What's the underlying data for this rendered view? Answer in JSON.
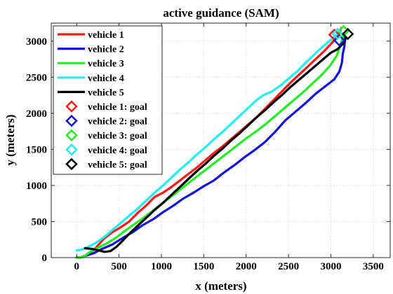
{
  "chart_data": {
    "type": "line",
    "title": "active guidance (SAM)",
    "xlabel": "x (meters)",
    "ylabel": "y (meters)",
    "xlim": [
      -300,
      3700
    ],
    "ylim": [
      0,
      3250
    ],
    "xticks": [
      0,
      500,
      1000,
      1500,
      2000,
      2500,
      3000,
      3500
    ],
    "yticks": [
      0,
      500,
      1000,
      1500,
      2000,
      2500,
      3000
    ],
    "grid": true,
    "legend_position": "top-left",
    "series": [
      {
        "name": "vehicle 1",
        "color": "#ff1a1a",
        "x": [
          0,
          60,
          120,
          200,
          260,
          320,
          420,
          520,
          620,
          720,
          820,
          920,
          1020,
          1120,
          1220,
          1320,
          1420,
          1520,
          1620,
          1720,
          1820,
          1920,
          2020,
          2120,
          2220,
          2320,
          2420,
          2520,
          2620,
          2720,
          2820,
          2920,
          3000,
          3060,
          3100,
          3120
        ],
        "y": [
          0,
          5,
          40,
          100,
          180,
          260,
          350,
          420,
          500,
          620,
          720,
          840,
          900,
          980,
          1070,
          1160,
          1250,
          1350,
          1450,
          1540,
          1640,
          1740,
          1840,
          1940,
          2060,
          2180,
          2300,
          2420,
          2530,
          2640,
          2750,
          2860,
          2960,
          3040,
          3110,
          3180
        ]
      },
      {
        "name": "vehicle 2",
        "color": "#1515d6",
        "x": [
          0,
          50,
          120,
          200,
          300,
          420,
          540,
          660,
          780,
          900,
          1020,
          1140,
          1260,
          1380,
          1500,
          1620,
          1740,
          1860,
          1980,
          2100,
          2220,
          2340,
          2460,
          2580,
          2700,
          2820,
          2940,
          3040,
          3100,
          3130,
          3140,
          3160,
          3170
        ],
        "y": [
          0,
          5,
          30,
          60,
          120,
          180,
          270,
          350,
          450,
          530,
          630,
          720,
          820,
          900,
          990,
          1070,
          1180,
          1280,
          1390,
          1490,
          1600,
          1740,
          1900,
          2020,
          2140,
          2270,
          2380,
          2470,
          2580,
          2700,
          2820,
          2930,
          3060
        ]
      },
      {
        "name": "vehicle 3",
        "color": "#22ee22",
        "x": [
          0,
          80,
          160,
          260,
          360,
          470,
          580,
          690,
          800,
          910,
          1020,
          1130,
          1240,
          1350,
          1460,
          1570,
          1680,
          1790,
          1900,
          2010,
          2120,
          2230,
          2340,
          2450,
          2560,
          2670,
          2780,
          2890,
          2990,
          3070,
          3110,
          3150
        ],
        "y": [
          0,
          10,
          80,
          140,
          200,
          280,
          380,
          470,
          560,
          660,
          760,
          860,
          960,
          1060,
          1160,
          1260,
          1360,
          1460,
          1560,
          1660,
          1750,
          1850,
          1960,
          2070,
          2180,
          2290,
          2410,
          2530,
          2660,
          2800,
          2940,
          3080
        ]
      },
      {
        "name": "vehicle 4",
        "color": "#22eeee",
        "x": [
          0,
          60,
          120,
          220,
          320,
          420,
          520,
          620,
          720,
          820,
          920,
          1020,
          1120,
          1220,
          1320,
          1420,
          1520,
          1620,
          1720,
          1820,
          1920,
          2020,
          2120,
          2200,
          2300,
          2400,
          2500,
          2600,
          2700,
          2800,
          2900,
          3000,
          3100
        ],
        "y": [
          100,
          110,
          140,
          200,
          280,
          380,
          480,
          580,
          680,
          790,
          900,
          1000,
          1110,
          1220,
          1320,
          1430,
          1530,
          1640,
          1740,
          1850,
          1960,
          2070,
          2180,
          2250,
          2300,
          2380,
          2480,
          2580,
          2700,
          2810,
          2920,
          3020,
          3130
        ]
      },
      {
        "name": "vehicle 5",
        "color": "#000000",
        "x": [
          100,
          180,
          260,
          330,
          400,
          470,
          540,
          620,
          720,
          820,
          920,
          1020,
          1120,
          1220,
          1320,
          1420,
          1520,
          1620,
          1720,
          1820,
          1920,
          2020,
          2120,
          2220,
          2320,
          2420,
          2520,
          2620,
          2720,
          2820,
          2920,
          3000,
          3080,
          3140,
          3180
        ],
        "y": [
          130,
          120,
          100,
          80,
          90,
          150,
          230,
          330,
          440,
          550,
          660,
          760,
          870,
          980,
          1090,
          1200,
          1300,
          1410,
          1510,
          1620,
          1720,
          1830,
          1940,
          2040,
          2150,
          2250,
          2360,
          2460,
          2560,
          2660,
          2760,
          2840,
          2890,
          2960,
          3050
        ]
      }
    ],
    "goals": [
      {
        "name": "vehicle 1: goal",
        "color": "#ff1a1a",
        "x": 3040,
        "y": 3090
      },
      {
        "name": "vehicle 2: goal",
        "color": "#1515d6",
        "x": 3100,
        "y": 3010
      },
      {
        "name": "vehicle 3: goal",
        "color": "#22ee22",
        "x": 3150,
        "y": 3140
      },
      {
        "name": "vehicle 4: goal",
        "color": "#22eeee",
        "x": 3080,
        "y": 3100
      },
      {
        "name": "vehicle 5: goal",
        "color": "#000000",
        "x": 3200,
        "y": 3100
      }
    ]
  }
}
